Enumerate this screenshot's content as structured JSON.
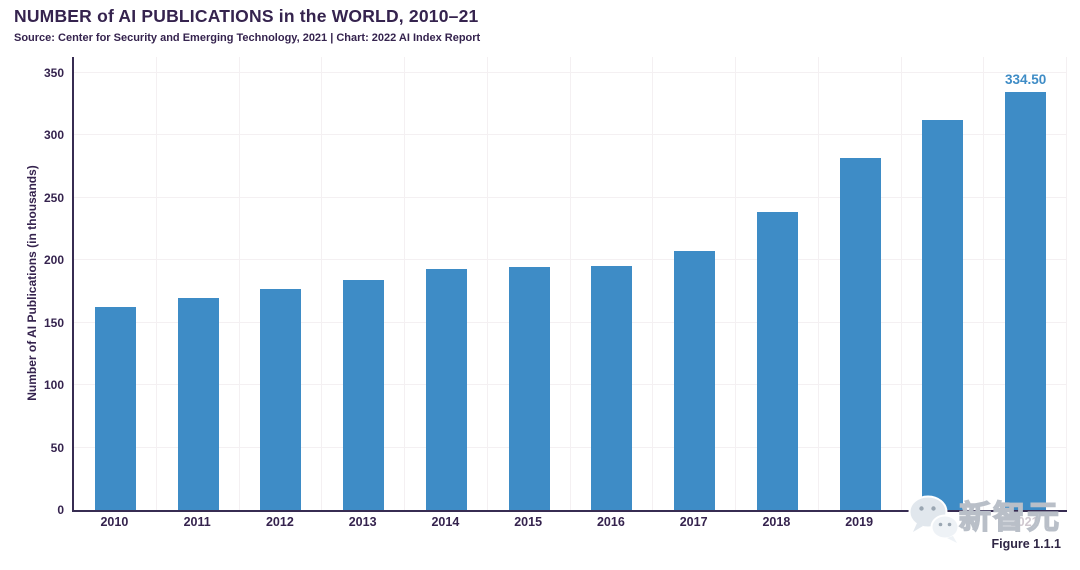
{
  "header": {
    "title": "NUMBER of AI PUBLICATIONS in the WORLD, 2010–21",
    "subtitle": "Source: Center for Security and Emerging Technology, 2021 | Chart: 2022 AI Index Report"
  },
  "chart_data": {
    "type": "bar",
    "title": "NUMBER of AI PUBLICATIONS in the WORLD, 2010–21",
    "categories": [
      "2010",
      "2011",
      "2012",
      "2013",
      "2014",
      "2015",
      "2016",
      "2017",
      "2018",
      "2019",
      "2020",
      "2021"
    ],
    "values": [
      162.4,
      170.0,
      177.0,
      184.2,
      192.8,
      194.8,
      195.5,
      206.9,
      238.3,
      281.8,
      312.4,
      334.5
    ],
    "xlabel": "",
    "ylabel": "Number of AI Publications (in thousands)",
    "ylim": [
      0,
      350
    ],
    "yticks": [
      0,
      50,
      100,
      150,
      200,
      250,
      300,
      350
    ],
    "grid": true,
    "legend": "none",
    "bar_color": "#3e8cc6",
    "labeled_bar_index": 11,
    "labeled_bar_value": "334.50"
  },
  "watermark": {
    "text": "新智元",
    "icon": "wechat-bubbles-icon",
    "covers": [
      "2020",
      "2021"
    ]
  },
  "footer": {
    "figure_label": "Figure 1.1.1"
  },
  "colors": {
    "accent_blue": "#3e8cc6",
    "ink": "#35234e",
    "grid": "#f4f0f2",
    "axis": "#372c52",
    "watermark_gray": "#b9bfc8"
  }
}
